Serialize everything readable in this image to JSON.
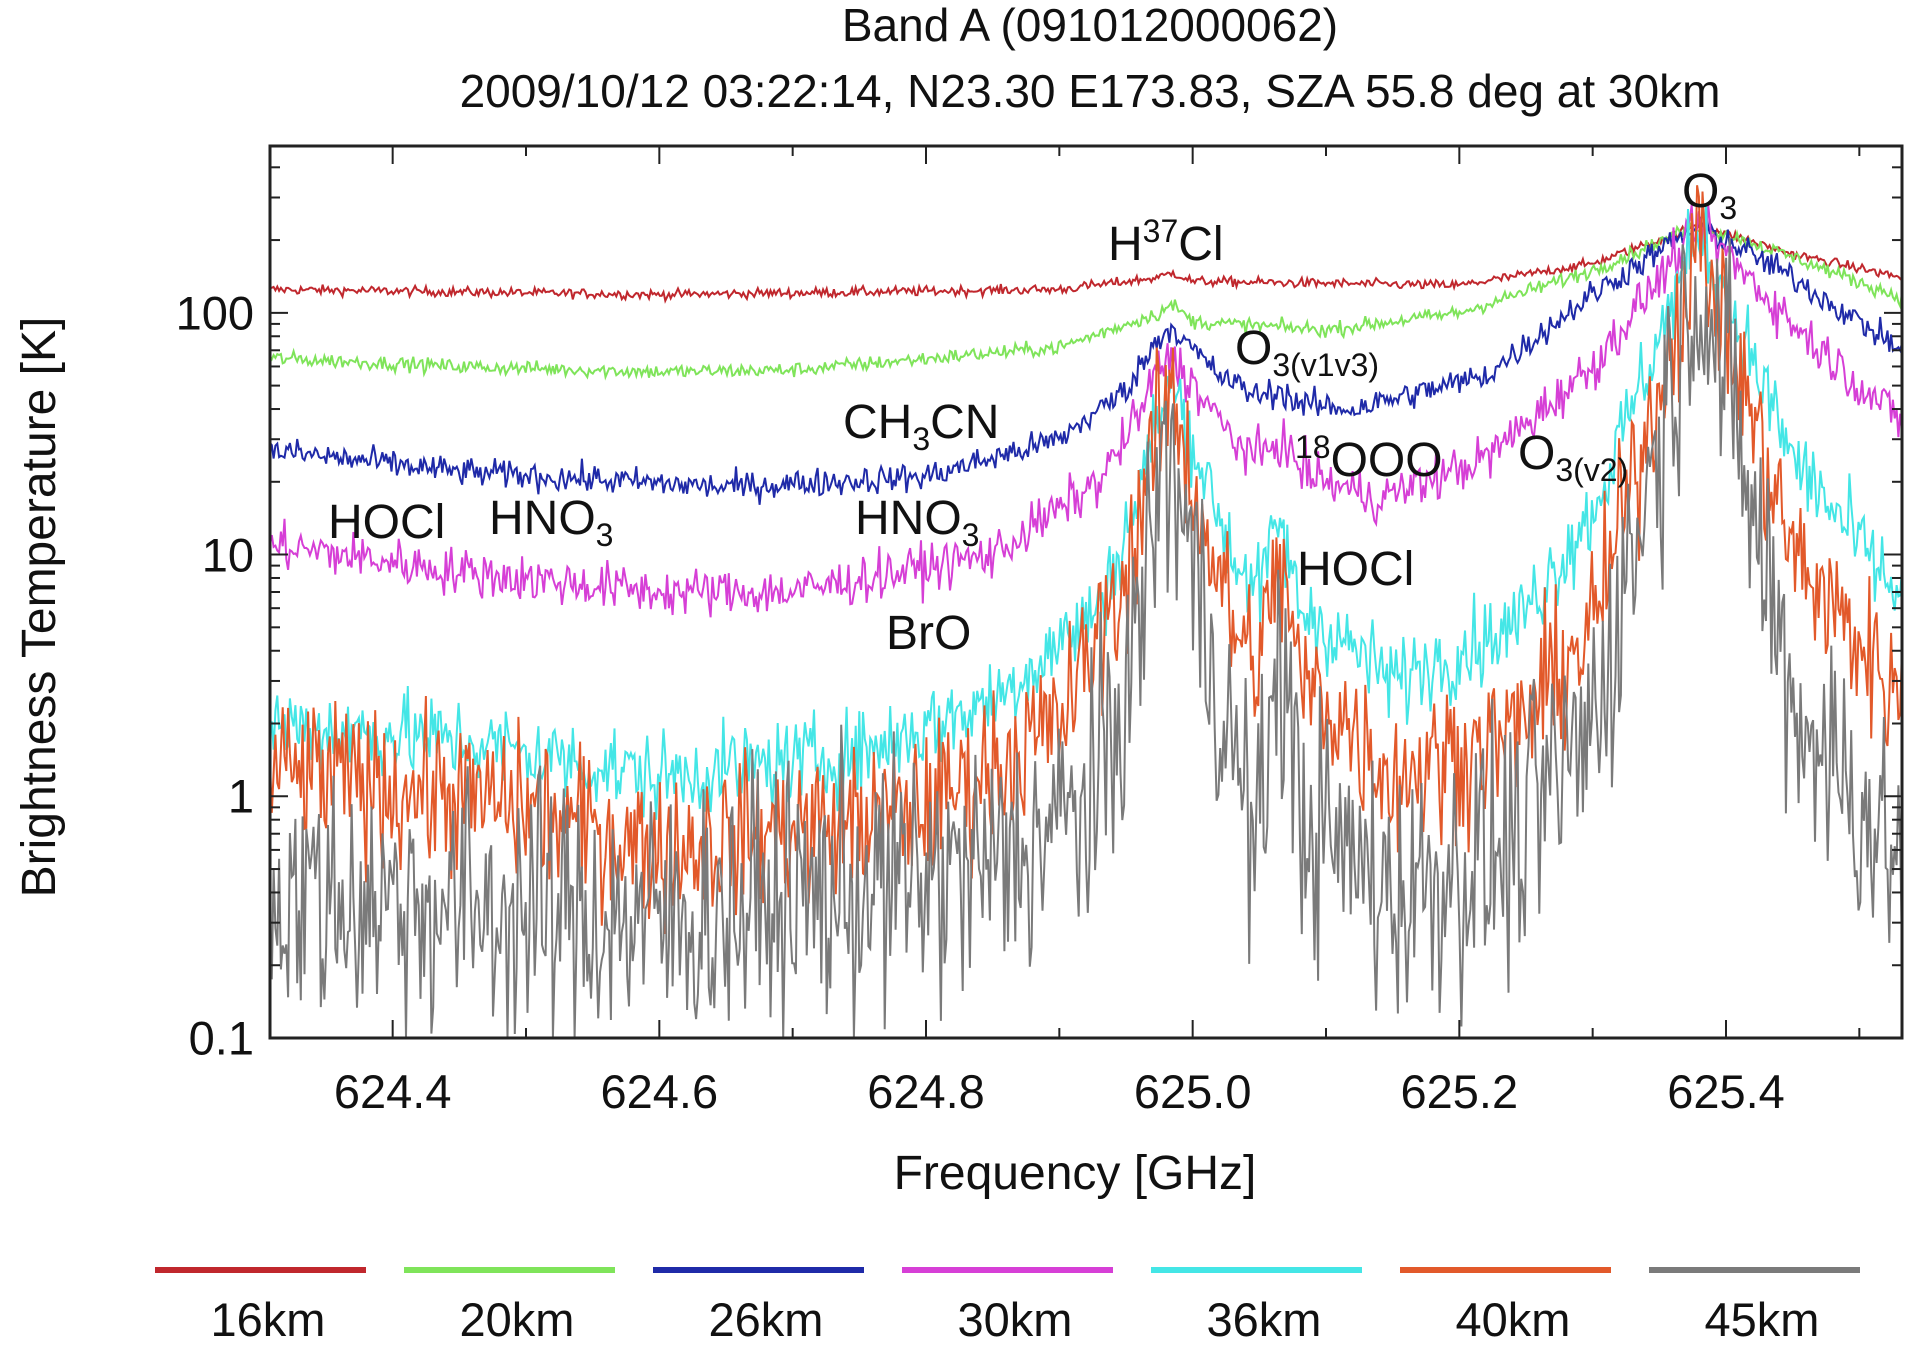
{
  "chart_data": {
    "type": "line",
    "title": "Band A (091012000062)",
    "subtitle": "2009/10/12 03:22:14, N23.30 E173.83, SZA 55.8 deg at 30km",
    "xlabel": "Frequency [GHz]",
    "ylabel": "Brightness Temperature [K]",
    "xlim": [
      624.308,
      625.532
    ],
    "ylim": [
      0.1,
      490
    ],
    "yscale": "log",
    "xticks": [
      624.4,
      624.6,
      624.8,
      625.0,
      625.2,
      625.4
    ],
    "xtick_labels": [
      "624.4",
      "624.6",
      "624.8",
      "625.0",
      "625.2",
      "625.4"
    ],
    "yticks": [
      0.1,
      1,
      10,
      100
    ],
    "ytick_labels": [
      "0.1",
      "1",
      "10",
      "100"
    ],
    "legend_position": "bottom",
    "series": [
      {
        "name": "16km",
        "color": "#c0272d",
        "noise": 0.01,
        "x": [
          624.308,
          624.6,
          624.9,
          624.975,
          624.985,
          625.0,
          625.2,
          625.3,
          625.38,
          625.45,
          625.532
        ],
        "y": [
          125,
          119,
          125,
          140,
          147,
          135,
          130,
          160,
          230,
          175,
          140
        ]
      },
      {
        "name": "20km",
        "color": "#7fe45a",
        "noise": 0.015,
        "x": [
          624.308,
          624.45,
          624.6,
          624.7,
          624.9,
          624.975,
          624.985,
          625.0,
          625.1,
          625.2,
          625.3,
          625.38,
          625.45,
          625.532
        ],
        "y": [
          65,
          60,
          57,
          58,
          72,
          100,
          108,
          92,
          85,
          100,
          150,
          230,
          170,
          115
        ]
      },
      {
        "name": "26km",
        "color": "#1f2aa8",
        "noise": 0.03,
        "x": [
          624.308,
          624.45,
          624.65,
          624.8,
          624.9,
          624.95,
          624.975,
          624.985,
          624.995,
          625.02,
          625.05,
          625.065,
          625.08,
          625.12,
          625.22,
          625.3,
          625.38,
          625.45,
          625.532
        ],
        "y": [
          27,
          22,
          19,
          21,
          30,
          48,
          80,
          88,
          75,
          55,
          45,
          48,
          42,
          40,
          55,
          120,
          230,
          140,
          70
        ]
      },
      {
        "name": "30km",
        "color": "#d63fd6",
        "noise": 0.05,
        "x": [
          624.308,
          624.45,
          624.6,
          624.7,
          624.85,
          624.93,
          624.96,
          624.975,
          624.985,
          624.995,
          625.03,
          625.05,
          625.065,
          625.08,
          625.1,
          625.14,
          625.22,
          625.3,
          625.38,
          625.45,
          625.532
        ],
        "y": [
          11,
          8.5,
          7,
          7,
          10,
          20,
          38,
          60,
          65,
          55,
          30,
          25,
          30,
          23,
          20,
          17,
          25,
          60,
          230,
          90,
          35
        ]
      },
      {
        "name": "36km",
        "color": "#44e6e6",
        "noise": 0.09,
        "x": [
          624.308,
          624.45,
          624.6,
          624.75,
          624.85,
          624.93,
          624.96,
          624.975,
          624.985,
          624.995,
          625.03,
          625.05,
          625.065,
          625.08,
          625.1,
          625.15,
          625.24,
          625.3,
          625.38,
          625.45,
          625.532
        ],
        "y": [
          2,
          1.7,
          1.2,
          1.5,
          2.5,
          6,
          18,
          40,
          50,
          35,
          10,
          7,
          14,
          6,
          5,
          3,
          5,
          15,
          220,
          25,
          6.5
        ]
      },
      {
        "name": "40km",
        "color": "#e2592a",
        "noise": 0.16,
        "x": [
          624.308,
          624.5,
          624.6,
          624.8,
          624.9,
          624.95,
          624.975,
          624.985,
          624.995,
          625.03,
          625.05,
          625.065,
          625.08,
          625.1,
          625.15,
          625.24,
          625.3,
          625.38,
          625.45,
          625.532
        ],
        "y": [
          1.3,
          0.9,
          0.6,
          0.9,
          2,
          8,
          35,
          45,
          25,
          5,
          3.5,
          10,
          3,
          2.5,
          1.2,
          1.8,
          5,
          200,
          10,
          2.5
        ]
      },
      {
        "name": "45km",
        "color": "#7a7a7a",
        "noise": 0.28,
        "x": [
          624.308,
          624.6,
          624.85,
          624.93,
          624.96,
          624.975,
          624.985,
          624.995,
          625.03,
          625.05,
          625.065,
          625.08,
          625.15,
          625.24,
          625.3,
          625.38,
          625.45,
          625.532
        ],
        "y": [
          0.4,
          0.3,
          0.5,
          1,
          5,
          20,
          25,
          12,
          1.5,
          0.6,
          5,
          0.8,
          0.4,
          0.6,
          2,
          160,
          2.5,
          0.5
        ]
      }
    ],
    "annotations": {
      "o3": {
        "base": "O",
        "sub": "3"
      },
      "h37cl": {
        "base": "H",
        "sup": "37",
        "tail": "Cl"
      },
      "o3_v1v3": {
        "base": "O",
        "sub": "3(v1v3)"
      },
      "ch3cn": {
        "base": "CH",
        "sub": "3",
        "tail": "CN"
      },
      "ooo18": {
        "sup": "18",
        "tail": "OOO"
      },
      "o3_v2": {
        "base": "O",
        "sub": "3(v2)"
      },
      "hocl_left": {
        "base": "HOCl"
      },
      "hno3_left": {
        "base": "HNO",
        "sub": "3"
      },
      "hno3_mid": {
        "base": "HNO",
        "sub": "3"
      },
      "hocl_right": {
        "base": "HOCl"
      },
      "bro": {
        "base": "BrO"
      }
    }
  }
}
